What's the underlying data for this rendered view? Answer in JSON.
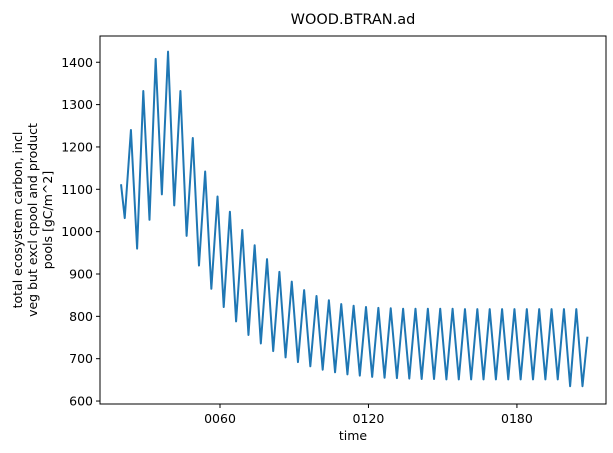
{
  "chart_data": {
    "type": "line",
    "title": "WOOD.BTRAN.ad",
    "xlabel": "time",
    "ylabel_lines": [
      "total ecosystem carbon, incl",
      "veg but excl cpool and product",
      "pools [gC/m^2]"
    ],
    "x_ticks": [
      {
        "value": 60,
        "label": "0060"
      },
      {
        "value": 120,
        "label": "0120"
      },
      {
        "value": 180,
        "label": "0180"
      }
    ],
    "y_ticks": [
      600,
      700,
      800,
      900,
      1000,
      1100,
      1200,
      1300,
      1400
    ],
    "xlim": [
      11.5,
      216
    ],
    "ylim": [
      593,
      1462
    ],
    "grid": false,
    "color": "#1f77b4",
    "series": [
      {
        "x": [
          20,
          21.5,
          24,
          26.5,
          29,
          31.5,
          34,
          36.5,
          39,
          41.5,
          44,
          46.5,
          49,
          51.5,
          54,
          56.5,
          59,
          61.5,
          64,
          66.5,
          69,
          71.5,
          74,
          76.5,
          79,
          81.5,
          84,
          86.5,
          89,
          91.5,
          94,
          96.5,
          99,
          101.5,
          104,
          106.5,
          109,
          111.5,
          114,
          116.5,
          119,
          121.5,
          124,
          126.5,
          129,
          131.5,
          134,
          136.5,
          139,
          141.5,
          144,
          146.5,
          149,
          151.5,
          154,
          156.5,
          159,
          161.5,
          164,
          166.5,
          169,
          171.5,
          174,
          176.5,
          179,
          181.5,
          184,
          186.5,
          189,
          191.5,
          194,
          196.5,
          199,
          201.5,
          204,
          206.5,
          208.5
        ],
        "y": [
          1112,
          1032,
          1240,
          960,
          1332,
          1028,
          1408,
          1088,
          1425,
          1062,
          1332,
          990,
          1221,
          920,
          1142,
          865,
          1083,
          822,
          1047,
          788,
          1004,
          756,
          968,
          736,
          935,
          718,
          905,
          703,
          882,
          692,
          862,
          682,
          848,
          674,
          838,
          668,
          829,
          663,
          825,
          660,
          822,
          657,
          820,
          655,
          819,
          654,
          818,
          653,
          818,
          652,
          818,
          652,
          818,
          651,
          818,
          651,
          817,
          651,
          817,
          651,
          817,
          651,
          817,
          651,
          817,
          651,
          817,
          651,
          817,
          651,
          817,
          651,
          817,
          635,
          817,
          635,
          752
        ]
      }
    ]
  }
}
